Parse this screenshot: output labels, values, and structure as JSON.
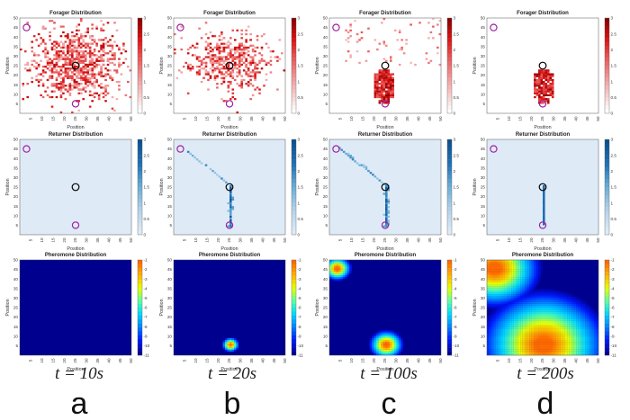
{
  "colors": {
    "background": "#ffffff",
    "forager_scale": [
      "#ffffff",
      "#f6c7c7",
      "#ef8f8f",
      "#e85353",
      "#d90f0f",
      "#8c0000"
    ],
    "returner_scale": [
      "#deebf7",
      "#b4d2ea",
      "#6baed6",
      "#2171b5",
      "#0b4f8f"
    ],
    "pheromone_scale": [
      "#00008f",
      "#0019ff",
      "#0080ff",
      "#00d8ff",
      "#5cffa0",
      "#e8ff00",
      "#ffb000",
      "#ff6a00"
    ],
    "nest_marker": "#000000",
    "food_marker": "#a020a0"
  },
  "chart_data": [
    {
      "panel": "a",
      "row": "forager",
      "type": "heatmap",
      "title": "Forager Distribution",
      "xlabel": "Position",
      "ylabel": "Position",
      "xlim": [
        0,
        50
      ],
      "ylim": [
        0,
        50
      ],
      "xticks": [
        5,
        10,
        15,
        20,
        25,
        30,
        35,
        40,
        45,
        50
      ],
      "yticks": [
        5,
        10,
        15,
        20,
        25,
        30,
        35,
        40,
        45,
        50
      ],
      "colorbar": {
        "ticks": [
          "0",
          "0.5",
          "1",
          "1.5",
          "2",
          "2.5",
          "3"
        ],
        "min": 0,
        "max": 3
      },
      "markers": {
        "nest": [
          25,
          25
        ],
        "food": [
          [
            3,
            45
          ],
          [
            25,
            5
          ]
        ]
      },
      "pattern": "diffuse-large",
      "center": [
        25,
        25
      ],
      "spread": 11
    },
    {
      "panel": "b",
      "row": "forager",
      "type": "heatmap",
      "title": "Forager Distribution",
      "xlabel": "Position",
      "ylabel": "Position",
      "xlim": [
        0,
        50
      ],
      "ylim": [
        0,
        50
      ],
      "xticks": [
        5,
        10,
        15,
        20,
        25,
        30,
        35,
        40,
        45,
        50
      ],
      "yticks": [
        5,
        10,
        15,
        20,
        25,
        30,
        35,
        40,
        45,
        50
      ],
      "colorbar": {
        "ticks": [
          "0",
          "0.5",
          "1",
          "1.5",
          "2",
          "2.5",
          "3"
        ],
        "min": 0,
        "max": 3
      },
      "markers": {
        "nest": [
          25,
          25
        ],
        "food": [
          [
            3,
            45
          ],
          [
            25,
            5
          ]
        ]
      },
      "pattern": "diffuse-medium",
      "center": [
        25,
        27
      ],
      "spread": 9
    },
    {
      "panel": "c",
      "row": "forager",
      "type": "heatmap",
      "title": "Forager Distribution",
      "xlabel": "Position",
      "ylabel": "Position",
      "xlim": [
        0,
        50
      ],
      "ylim": [
        0,
        50
      ],
      "xticks": [
        5,
        10,
        15,
        20,
        25,
        30,
        35,
        40,
        45,
        50
      ],
      "yticks": [
        5,
        10,
        15,
        20,
        25,
        30,
        35,
        40,
        45,
        50
      ],
      "colorbar": {
        "ticks": [
          "0",
          "0.5",
          "1",
          "1.5",
          "2",
          "2.5",
          "3"
        ],
        "min": 0,
        "max": 3
      },
      "markers": {
        "nest": [
          25,
          25
        ],
        "food": [
          [
            3,
            45
          ],
          [
            25,
            5
          ]
        ]
      },
      "pattern": "column-plus-sparse",
      "center": [
        24,
        13
      ],
      "spread": 3
    },
    {
      "panel": "d",
      "row": "forager",
      "type": "heatmap",
      "title": "Forager Distribution",
      "xlabel": "Position",
      "ylabel": "Position",
      "xlim": [
        0,
        50
      ],
      "ylim": [
        0,
        50
      ],
      "xticks": [
        5,
        10,
        15,
        20,
        25,
        30,
        35,
        40,
        45,
        50
      ],
      "yticks": [
        5,
        10,
        15,
        20,
        25,
        30,
        35,
        40,
        45,
        50
      ],
      "colorbar": {
        "ticks": [
          "0",
          "0.5",
          "1",
          "1.5",
          "2",
          "2.5",
          "3"
        ],
        "min": 0,
        "max": 3
      },
      "markers": {
        "nest": [
          25,
          25
        ],
        "food": [
          [
            3,
            45
          ],
          [
            25,
            5
          ]
        ]
      },
      "pattern": "column",
      "center": [
        25,
        14
      ],
      "spread": 3
    },
    {
      "panel": "a",
      "row": "returner",
      "type": "heatmap",
      "title": "Returner Distribution",
      "xlabel": "Position",
      "ylabel": "Position",
      "xlim": [
        0,
        50
      ],
      "ylim": [
        0,
        50
      ],
      "xticks": [
        5,
        10,
        15,
        20,
        25,
        30,
        35,
        40,
        45,
        50
      ],
      "yticks": [
        5,
        10,
        15,
        20,
        25,
        30,
        35,
        40,
        45,
        50
      ],
      "colorbar": {
        "ticks": [
          "0",
          "0.5",
          "1",
          "1.5",
          "2",
          "2.5",
          "3"
        ],
        "min": 0,
        "max": 3
      },
      "markers": {
        "nest": [
          25,
          25
        ],
        "food": [
          [
            3,
            45
          ],
          [
            25,
            5
          ]
        ]
      },
      "pattern": "empty"
    },
    {
      "panel": "b",
      "row": "returner",
      "type": "heatmap",
      "title": "Returner Distribution",
      "xlabel": "Position",
      "ylabel": "Position",
      "xlim": [
        0,
        50
      ],
      "ylim": [
        0,
        50
      ],
      "xticks": [
        5,
        10,
        15,
        20,
        25,
        30,
        35,
        40,
        45,
        50
      ],
      "yticks": [
        5,
        10,
        15,
        20,
        25,
        30,
        35,
        40,
        45,
        50
      ],
      "colorbar": {
        "ticks": [
          "0",
          "0.5",
          "1",
          "1.5",
          "2",
          "2.5",
          "3"
        ],
        "min": 0,
        "max": 3
      },
      "markers": {
        "nest": [
          25,
          25
        ],
        "food": [
          [
            3,
            45
          ],
          [
            25,
            5
          ]
        ]
      },
      "pattern": "trail-sparse"
    },
    {
      "panel": "c",
      "row": "returner",
      "type": "heatmap",
      "title": "Returner Distribution",
      "xlabel": "Position",
      "ylabel": "Position",
      "xlim": [
        0,
        50
      ],
      "ylim": [
        0,
        50
      ],
      "xticks": [
        5,
        10,
        15,
        20,
        25,
        30,
        35,
        40,
        45,
        50
      ],
      "yticks": [
        5,
        10,
        15,
        20,
        25,
        30,
        35,
        40,
        45,
        50
      ],
      "colorbar": {
        "ticks": [
          "0",
          "0.5",
          "1",
          "1.5",
          "2",
          "2.5",
          "3"
        ],
        "min": 0,
        "max": 3
      },
      "markers": {
        "nest": [
          25,
          25
        ],
        "food": [
          [
            3,
            45
          ],
          [
            25,
            5
          ]
        ]
      },
      "pattern": "trail-dense"
    },
    {
      "panel": "d",
      "row": "returner",
      "type": "heatmap",
      "title": "Returner Distribution",
      "xlabel": "Position",
      "ylabel": "Position",
      "xlim": [
        0,
        50
      ],
      "ylim": [
        0,
        50
      ],
      "xticks": [
        5,
        10,
        15,
        20,
        25,
        30,
        35,
        40,
        45,
        50
      ],
      "yticks": [
        5,
        10,
        15,
        20,
        25,
        30,
        35,
        40,
        45,
        50
      ],
      "colorbar": {
        "ticks": [
          "0",
          "0.5",
          "1",
          "1.5",
          "2",
          "2.5",
          "3"
        ],
        "min": 0,
        "max": 3
      },
      "markers": {
        "nest": [
          25,
          25
        ],
        "food": [
          [
            3,
            45
          ],
          [
            25,
            5
          ]
        ]
      },
      "pattern": "line"
    },
    {
      "panel": "a",
      "row": "pheromone",
      "type": "heatmap",
      "title": "Pheromone Distribution",
      "xlabel": "Position",
      "ylabel": "Position",
      "xlim": [
        0,
        50
      ],
      "ylim": [
        0,
        50
      ],
      "xticks": [
        5,
        10,
        15,
        20,
        25,
        30,
        35,
        40,
        45,
        50
      ],
      "yticks": [
        5,
        10,
        15,
        20,
        25,
        30,
        35,
        40,
        45,
        50
      ],
      "colorbar": {
        "ticks": [
          "-1",
          "-2",
          "-3",
          "-4",
          "-5",
          "-6",
          "-7",
          "-8",
          "-9",
          "-10",
          "-11"
        ],
        "min": -11,
        "max": -1
      },
      "sources": []
    },
    {
      "panel": "b",
      "row": "pheromone",
      "type": "heatmap",
      "title": "Pheromone Distribution",
      "xlabel": "Position",
      "ylabel": "Position",
      "xlim": [
        0,
        50
      ],
      "ylim": [
        0,
        50
      ],
      "xticks": [
        5,
        10,
        15,
        20,
        25,
        30,
        35,
        40,
        45,
        50
      ],
      "yticks": [
        5,
        10,
        15,
        20,
        25,
        30,
        35,
        40,
        45,
        50
      ],
      "colorbar": {
        "ticks": [
          "-1",
          "-2",
          "-3",
          "-4",
          "-5",
          "-6",
          "-7",
          "-8",
          "-9",
          "-10",
          "-11"
        ],
        "min": -11,
        "max": -1
      },
      "sources": [
        {
          "x": 25,
          "y": 5,
          "radius": 3
        }
      ]
    },
    {
      "panel": "c",
      "row": "pheromone",
      "type": "heatmap",
      "title": "Pheromone Distribution",
      "xlabel": "Position",
      "ylabel": "Position",
      "xlim": [
        0,
        50
      ],
      "ylim": [
        0,
        50
      ],
      "xticks": [
        5,
        10,
        15,
        20,
        25,
        30,
        35,
        40,
        45,
        50
      ],
      "yticks": [
        5,
        10,
        15,
        20,
        25,
        30,
        35,
        40,
        45,
        50
      ],
      "colorbar": {
        "ticks": [
          "-1",
          "-2",
          "-3",
          "-4",
          "-5",
          "-6",
          "-7",
          "-8",
          "-9",
          "-10",
          "-11"
        ],
        "min": -11,
        "max": -1
      },
      "sources": [
        {
          "x": 3,
          "y": 45,
          "radius": 5
        },
        {
          "x": 25,
          "y": 5,
          "radius": 6
        }
      ]
    },
    {
      "panel": "d",
      "row": "pheromone",
      "type": "heatmap",
      "title": "Pheromone Distribution",
      "xlabel": "Position",
      "ylabel": "Position",
      "xlim": [
        0,
        50
      ],
      "ylim": [
        0,
        50
      ],
      "xticks": [
        5,
        10,
        15,
        20,
        25,
        30,
        35,
        40,
        45,
        50
      ],
      "yticks": [
        5,
        10,
        15,
        20,
        25,
        30,
        35,
        40,
        45,
        50
      ],
      "colorbar": {
        "ticks": [
          "-1",
          "-2",
          "-3",
          "-4",
          "-5",
          "-6",
          "-7",
          "-8",
          "-9",
          "-10",
          "-11"
        ],
        "min": -11,
        "max": -1
      },
      "sources": [
        {
          "x": 3,
          "y": 45,
          "radius": 16
        },
        {
          "x": 25,
          "y": 5,
          "radius": 22
        }
      ]
    }
  ],
  "captions": [
    {
      "time": "t = 10s",
      "letter": "a"
    },
    {
      "time": "t = 20s",
      "letter": "b"
    },
    {
      "time": "t = 100s",
      "letter": "c"
    },
    {
      "time": "t = 200s",
      "letter": "d"
    }
  ]
}
